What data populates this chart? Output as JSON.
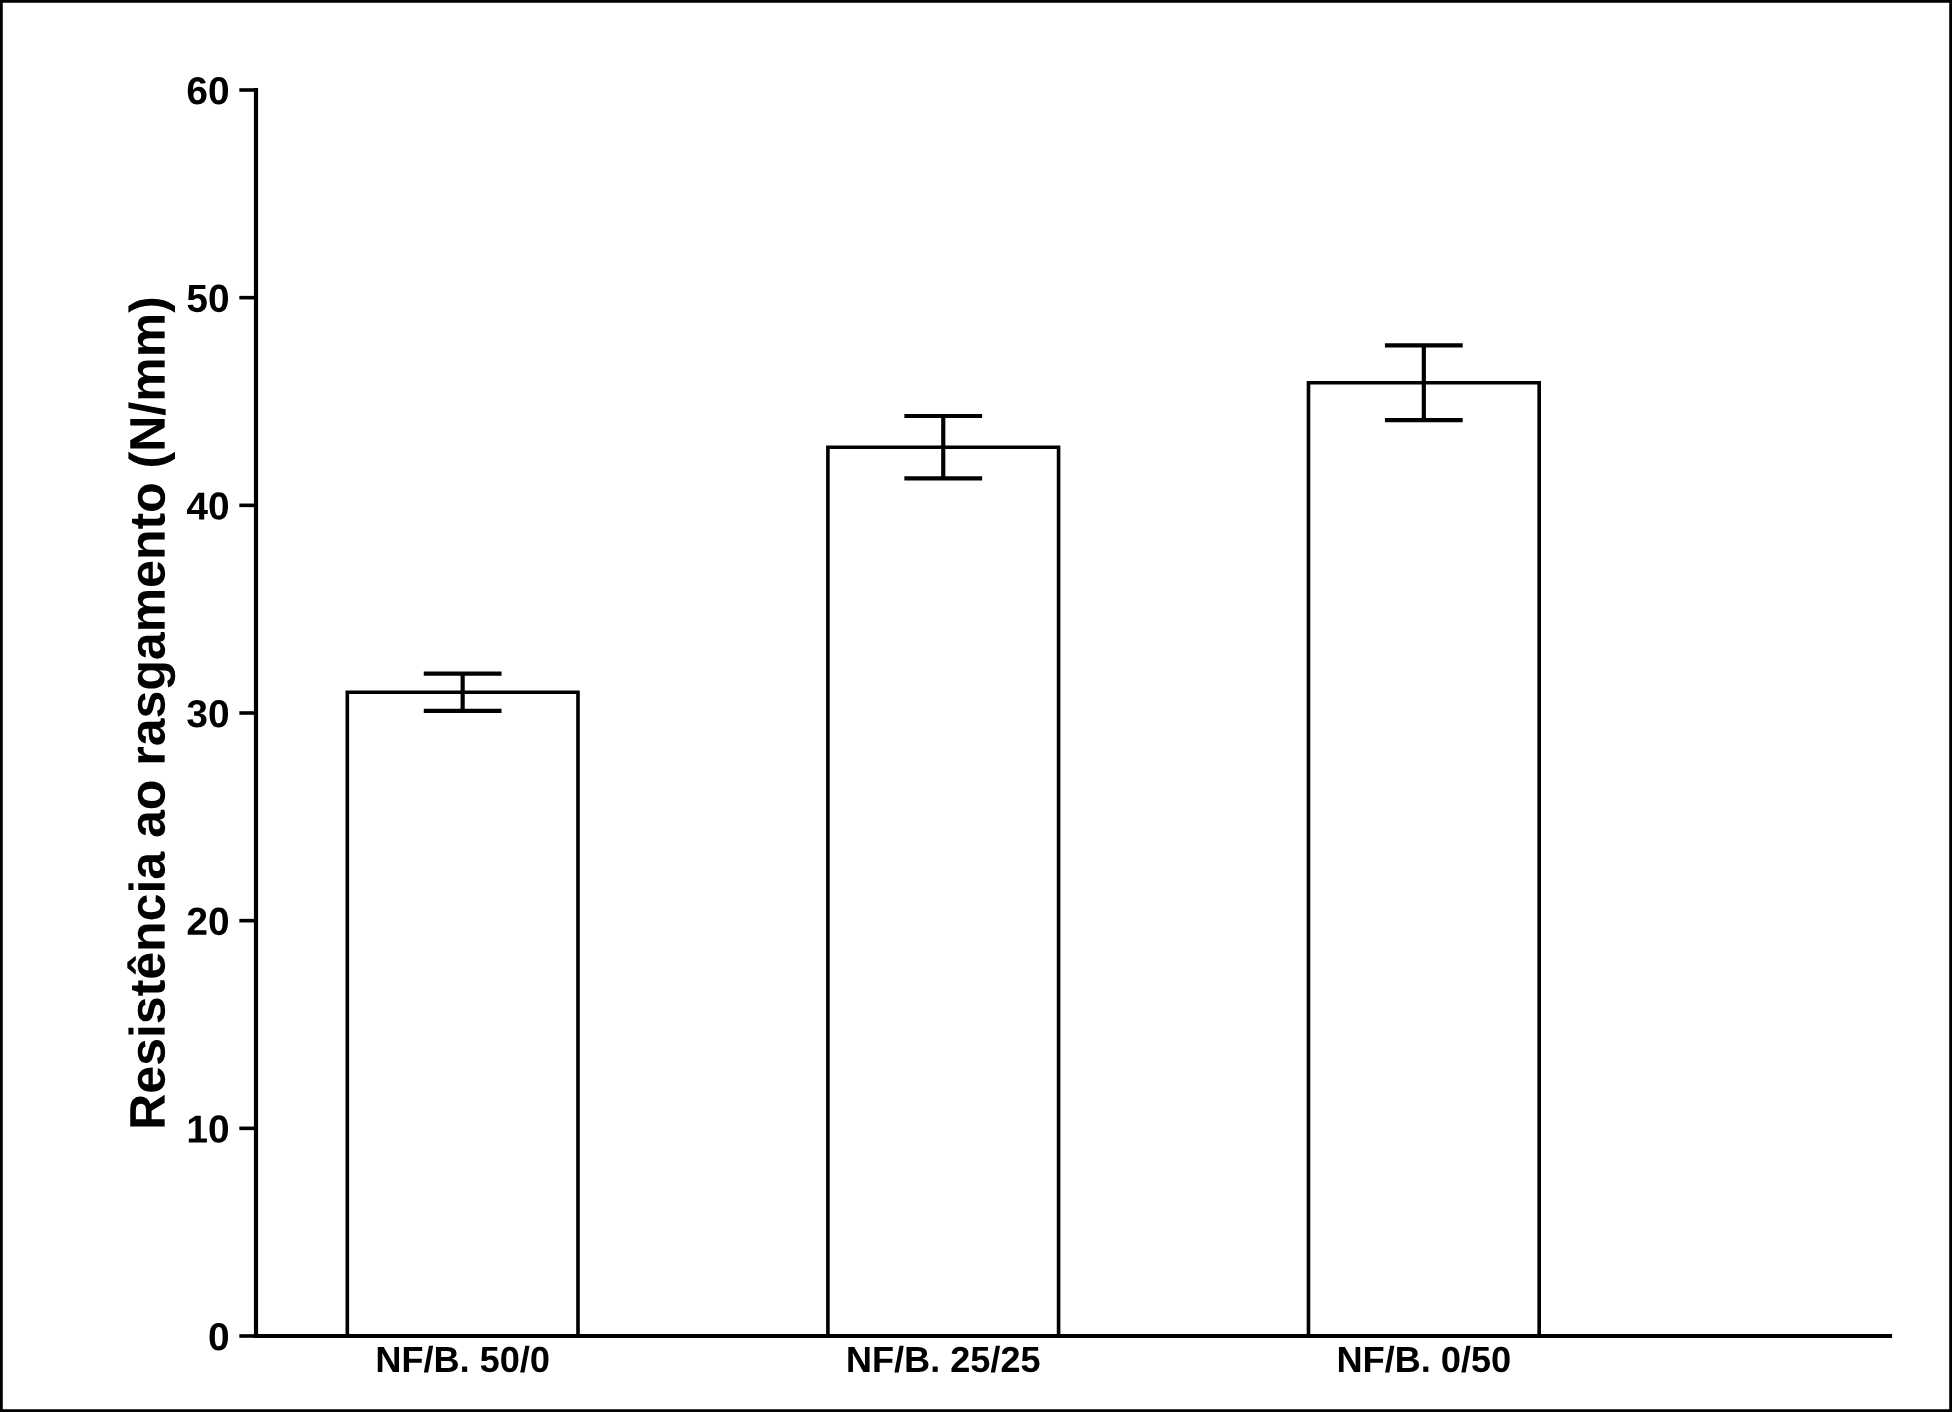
{
  "chart_data": {
    "type": "bar",
    "ylabel": "Resistência ao rasgamento (N/mm)",
    "categories": [
      "NF/B. 50/0",
      "NF/B. 25/25",
      "NF/B. 0/50"
    ],
    "values": [
      31.0,
      42.8,
      45.9
    ],
    "errors": [
      0.9,
      1.5,
      1.8
    ],
    "color": "#ffffff",
    "ylim": [
      0,
      60
    ],
    "yticks": [
      0,
      10,
      20,
      30,
      40,
      50,
      60
    ],
    "grid": false
  }
}
